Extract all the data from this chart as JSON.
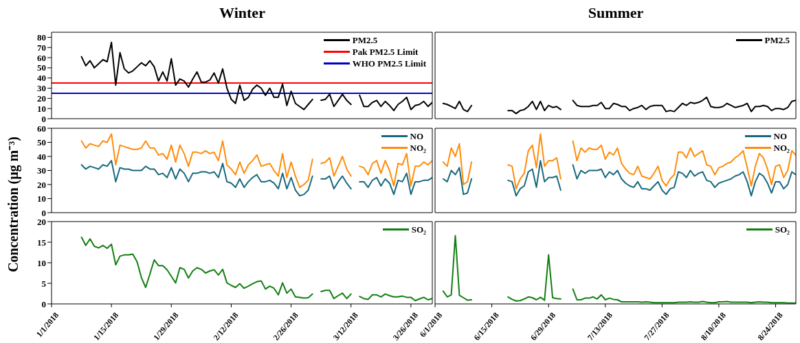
{
  "chart_data": [
    {
      "type": "line",
      "title": "Winter",
      "legend": "top right",
      "tick_labels": "y",
      "xlim": [
        "2018-01-01",
        "2018-03-31"
      ],
      "ylim": [
        0,
        85
      ],
      "yticks": [
        0,
        10,
        20,
        30,
        40,
        50,
        60,
        70,
        80
      ],
      "xticks": [
        {
          "value": "2018-01-01",
          "label": null
        },
        {
          "value": "2018-01-15",
          "label": null
        },
        {
          "value": "2018-01-29",
          "label": null
        },
        {
          "value": "2018-02-12",
          "label": null
        },
        {
          "value": "2018-02-26",
          "label": null
        },
        {
          "value": "2018-03-12",
          "label": null
        },
        {
          "value": "2018-03-26",
          "label": null
        }
      ],
      "x": [
        "2018-01-08",
        "2018-01-09",
        "2018-01-10",
        "2018-01-11",
        "2018-01-12",
        "2018-01-13",
        "2018-01-14",
        "2018-01-15",
        "2018-01-16",
        "2018-01-17",
        "2018-01-18",
        "2018-01-19",
        "2018-01-20",
        "2018-01-21",
        "2018-01-22",
        "2018-01-23",
        "2018-01-24",
        "2018-01-25",
        "2018-01-26",
        "2018-01-27",
        "2018-01-28",
        "2018-01-29",
        "2018-01-30",
        "2018-01-31",
        "2018-02-01",
        "2018-02-02",
        "2018-02-03",
        "2018-02-04",
        "2018-02-05",
        "2018-02-06",
        "2018-02-07",
        "2018-02-08",
        "2018-02-09",
        "2018-02-10",
        "2018-02-11",
        "2018-02-12",
        "2018-02-13",
        "2018-02-14",
        "2018-02-15",
        "2018-02-16",
        "2018-02-17",
        "2018-02-18",
        "2018-02-19",
        "2018-02-20",
        "2018-02-21",
        "2018-02-22",
        "2018-02-23",
        "2018-02-24",
        "2018-02-25",
        "2018-02-26",
        "2018-02-27",
        "2018-02-28",
        "2018-03-01",
        "2018-03-02",
        "2018-03-03",
        "2018-03-04",
        "2018-03-05",
        "2018-03-06",
        "2018-03-07",
        "2018-03-08",
        "2018-03-09",
        "2018-03-10",
        "2018-03-11",
        "2018-03-12",
        "2018-03-13",
        "2018-03-14",
        "2018-03-15",
        "2018-03-16",
        "2018-03-17",
        "2018-03-18",
        "2018-03-19",
        "2018-03-20",
        "2018-03-21",
        "2018-03-22",
        "2018-03-23",
        "2018-03-24",
        "2018-03-25",
        "2018-03-26",
        "2018-03-27",
        "2018-03-28",
        "2018-03-29",
        "2018-03-30",
        "2018-03-31"
      ],
      "series": [
        {
          "name": "PM2.5",
          "color": "#000000",
          "values": [
            61,
            52,
            57,
            50,
            54,
            58,
            56,
            75,
            33,
            65,
            49,
            45,
            47,
            51,
            55,
            52,
            57,
            51,
            37,
            46,
            37,
            59,
            33,
            39,
            37,
            31,
            39,
            46,
            36,
            36,
            38,
            45,
            35,
            49,
            30,
            19,
            15,
            33,
            18,
            21,
            29,
            33,
            30,
            23,
            30,
            21,
            21,
            34,
            13,
            27,
            15,
            12,
            9,
            14,
            19,
            null,
            18,
            19,
            24,
            12,
            18,
            24,
            18,
            14,
            null,
            23,
            12,
            12,
            16,
            18,
            12,
            17,
            13,
            8,
            14,
            17,
            21,
            9,
            13,
            14,
            17,
            12,
            16
          ]
        }
      ],
      "ref_lines": [
        {
          "axis": "y",
          "value": 35,
          "label": "Pak PM2.5 Limit",
          "color": "#ff0000"
        },
        {
          "axis": "y",
          "value": 25,
          "label": "WHO PM2.5 Limit",
          "color": "#0000cc"
        }
      ]
    },
    {
      "type": "line",
      "title": "Summer",
      "legend": "top right",
      "tick_labels": false,
      "xlim": [
        "2018-06-01",
        "2018-08-29"
      ],
      "ylim": [
        0,
        85
      ],
      "xticks": [
        {
          "value": "2018-06-01",
          "label": null
        },
        {
          "value": "2018-06-15",
          "label": null
        },
        {
          "value": "2018-06-29",
          "label": null
        },
        {
          "value": "2018-07-13",
          "label": null
        },
        {
          "value": "2018-07-27",
          "label": null
        },
        {
          "value": "2018-08-10",
          "label": null
        },
        {
          "value": "2018-08-24",
          "label": null
        }
      ],
      "x": [
        "2018-06-03",
        "2018-06-04",
        "2018-06-05",
        "2018-06-06",
        "2018-06-07",
        "2018-06-08",
        "2018-06-09",
        "2018-06-10",
        "2018-06-11",
        "2018-06-12",
        "2018-06-13",
        "2018-06-14",
        "2018-06-15",
        "2018-06-16",
        "2018-06-17",
        "2018-06-18",
        "2018-06-19",
        "2018-06-20",
        "2018-06-21",
        "2018-06-22",
        "2018-06-23",
        "2018-06-24",
        "2018-06-25",
        "2018-06-26",
        "2018-06-27",
        "2018-06-28",
        "2018-06-29",
        "2018-06-30",
        "2018-07-01",
        "2018-07-02",
        "2018-07-03",
        "2018-07-04",
        "2018-07-05",
        "2018-07-06",
        "2018-07-07",
        "2018-07-08",
        "2018-07-09",
        "2018-07-10",
        "2018-07-11",
        "2018-07-12",
        "2018-07-13",
        "2018-07-14",
        "2018-07-15",
        "2018-07-16",
        "2018-07-17",
        "2018-07-18",
        "2018-07-19",
        "2018-07-20",
        "2018-07-21",
        "2018-07-22",
        "2018-07-23",
        "2018-07-24",
        "2018-07-25",
        "2018-07-26",
        "2018-07-27",
        "2018-07-28",
        "2018-07-29",
        "2018-07-30",
        "2018-07-31",
        "2018-08-01",
        "2018-08-02",
        "2018-08-03",
        "2018-08-04",
        "2018-08-05",
        "2018-08-06",
        "2018-08-07",
        "2018-08-08",
        "2018-08-09",
        "2018-08-10",
        "2018-08-11",
        "2018-08-12",
        "2018-08-13",
        "2018-08-14",
        "2018-08-15",
        "2018-08-16",
        "2018-08-17",
        "2018-08-18",
        "2018-08-19",
        "2018-08-20",
        "2018-08-21",
        "2018-08-22",
        "2018-08-23",
        "2018-08-24",
        "2018-08-25",
        "2018-08-26",
        "2018-08-27",
        "2018-08-28",
        "2018-08-29"
      ],
      "series": [
        {
          "name": "PM2.5",
          "color": "#000000",
          "values": [
            15,
            14,
            12,
            10,
            17,
            9,
            7,
            13,
            null,
            null,
            null,
            null,
            null,
            null,
            null,
            null,
            8,
            8,
            5,
            8,
            9,
            12,
            17,
            9,
            17,
            8,
            13,
            11,
            12,
            9,
            null,
            null,
            18,
            13,
            12,
            12,
            12,
            13,
            13,
            16,
            10,
            10,
            15,
            14,
            12,
            12,
            8,
            10,
            11,
            13,
            9,
            12,
            13,
            13,
            13,
            7,
            8,
            7,
            11,
            15,
            13,
            16,
            15,
            16,
            18,
            21,
            12,
            11,
            11,
            12,
            15,
            13,
            11,
            12,
            13,
            15,
            7,
            12,
            12,
            13,
            12,
            8,
            10,
            10,
            9,
            11,
            17,
            18
          ]
        }
      ]
    },
    {
      "type": "line",
      "ylabel": "Concentration (μg m⁻³)",
      "legend": "top right",
      "tick_labels": "y",
      "xlim": [
        "2018-01-01",
        "2018-03-31"
      ],
      "ylim": [
        0,
        60
      ],
      "yticks": [
        0,
        10,
        20,
        30,
        40,
        50,
        60
      ],
      "xticks": [
        {
          "value": "2018-01-01",
          "label": null
        },
        {
          "value": "2018-01-15",
          "label": null
        },
        {
          "value": "2018-01-29",
          "label": null
        },
        {
          "value": "2018-02-12",
          "label": null
        },
        {
          "value": "2018-02-26",
          "label": null
        },
        {
          "value": "2018-03-12",
          "label": null
        },
        {
          "value": "2018-03-26",
          "label": null
        }
      ],
      "x": [
        "2018-01-08",
        "2018-01-09",
        "2018-01-10",
        "2018-01-11",
        "2018-01-12",
        "2018-01-13",
        "2018-01-14",
        "2018-01-15",
        "2018-01-16",
        "2018-01-17",
        "2018-01-18",
        "2018-01-19",
        "2018-01-20",
        "2018-01-21",
        "2018-01-22",
        "2018-01-23",
        "2018-01-24",
        "2018-01-25",
        "2018-01-26",
        "2018-01-27",
        "2018-01-28",
        "2018-01-29",
        "2018-01-30",
        "2018-01-31",
        "2018-02-01",
        "2018-02-02",
        "2018-02-03",
        "2018-02-04",
        "2018-02-05",
        "2018-02-06",
        "2018-02-07",
        "2018-02-08",
        "2018-02-09",
        "2018-02-10",
        "2018-02-11",
        "2018-02-12",
        "2018-02-13",
        "2018-02-14",
        "2018-02-15",
        "2018-02-16",
        "2018-02-17",
        "2018-02-18",
        "2018-02-19",
        "2018-02-20",
        "2018-02-21",
        "2018-02-22",
        "2018-02-23",
        "2018-02-24",
        "2018-02-25",
        "2018-02-26",
        "2018-02-27",
        "2018-02-28",
        "2018-03-01",
        "2018-03-02",
        "2018-03-03",
        "2018-03-04",
        "2018-03-05",
        "2018-03-06",
        "2018-03-07",
        "2018-03-08",
        "2018-03-09",
        "2018-03-10",
        "2018-03-11",
        "2018-03-12",
        "2018-03-13",
        "2018-03-14",
        "2018-03-15",
        "2018-03-16",
        "2018-03-17",
        "2018-03-18",
        "2018-03-19",
        "2018-03-20",
        "2018-03-21",
        "2018-03-22",
        "2018-03-23",
        "2018-03-24",
        "2018-03-25",
        "2018-03-26",
        "2018-03-27",
        "2018-03-28",
        "2018-03-29",
        "2018-03-30",
        "2018-03-31"
      ],
      "series": [
        {
          "name": "NO",
          "color": "#16687e",
          "values": [
            34,
            31,
            33,
            32,
            31,
            34,
            33,
            37,
            22,
            32,
            31,
            31,
            30,
            30,
            30,
            33,
            31,
            31,
            27,
            28,
            25,
            32,
            24,
            31,
            28,
            22,
            28,
            28,
            29,
            29,
            28,
            29,
            25,
            35,
            22,
            21,
            18,
            24,
            18,
            22,
            25,
            27,
            22,
            22,
            23,
            21,
            17,
            28,
            17,
            25,
            16,
            12,
            13,
            16,
            26,
            null,
            24,
            24,
            26,
            17,
            22,
            26,
            21,
            17,
            null,
            22,
            22,
            18,
            23,
            25,
            19,
            24,
            21,
            13,
            23,
            22,
            28,
            13,
            22,
            22,
            23,
            23,
            25
          ]
        },
        {
          "name": "NO₂",
          "color": "#ff8c0a",
          "values": [
            51,
            46,
            49,
            48,
            47,
            51,
            50,
            56,
            34,
            48,
            47,
            46,
            45,
            45,
            46,
            51,
            46,
            46,
            41,
            42,
            38,
            48,
            36,
            48,
            42,
            33,
            43,
            43,
            42,
            44,
            42,
            43,
            37,
            51,
            34,
            31,
            27,
            36,
            28,
            34,
            37,
            41,
            33,
            34,
            35,
            30,
            26,
            42,
            25,
            36,
            26,
            18,
            20,
            23,
            38,
            null,
            35,
            36,
            39,
            26,
            33,
            40,
            31,
            26,
            null,
            33,
            32,
            27,
            35,
            37,
            28,
            37,
            30,
            19,
            35,
            34,
            42,
            19,
            33,
            33,
            36,
            34,
            37
          ]
        }
      ]
    },
    {
      "type": "line",
      "legend": "top right",
      "tick_labels": false,
      "xlim": [
        "2018-06-01",
        "2018-08-29"
      ],
      "ylim": [
        0,
        60
      ],
      "xticks": [
        {
          "value": "2018-06-01",
          "label": null
        },
        {
          "value": "2018-06-15",
          "label": null
        },
        {
          "value": "2018-06-29",
          "label": null
        },
        {
          "value": "2018-07-13",
          "label": null
        },
        {
          "value": "2018-07-27",
          "label": null
        },
        {
          "value": "2018-08-10",
          "label": null
        },
        {
          "value": "2018-08-24",
          "label": null
        }
      ],
      "x": [
        "2018-06-03",
        "2018-06-04",
        "2018-06-05",
        "2018-06-06",
        "2018-06-07",
        "2018-06-08",
        "2018-06-09",
        "2018-06-10",
        "2018-06-11",
        "2018-06-12",
        "2018-06-13",
        "2018-06-14",
        "2018-06-15",
        "2018-06-16",
        "2018-06-17",
        "2018-06-18",
        "2018-06-19",
        "2018-06-20",
        "2018-06-21",
        "2018-06-22",
        "2018-06-23",
        "2018-06-24",
        "2018-06-25",
        "2018-06-26",
        "2018-06-27",
        "2018-06-28",
        "2018-06-29",
        "2018-06-30",
        "2018-07-01",
        "2018-07-02",
        "2018-07-03",
        "2018-07-04",
        "2018-07-05",
        "2018-07-06",
        "2018-07-07",
        "2018-07-08",
        "2018-07-09",
        "2018-07-10",
        "2018-07-11",
        "2018-07-12",
        "2018-07-13",
        "2018-07-14",
        "2018-07-15",
        "2018-07-16",
        "2018-07-17",
        "2018-07-18",
        "2018-07-19",
        "2018-07-20",
        "2018-07-21",
        "2018-07-22",
        "2018-07-23",
        "2018-07-24",
        "2018-07-25",
        "2018-07-26",
        "2018-07-27",
        "2018-07-28",
        "2018-07-29",
        "2018-07-30",
        "2018-07-31",
        "2018-08-01",
        "2018-08-02",
        "2018-08-03",
        "2018-08-04",
        "2018-08-05",
        "2018-08-06",
        "2018-08-07",
        "2018-08-08",
        "2018-08-09",
        "2018-08-10",
        "2018-08-11",
        "2018-08-12",
        "2018-08-13",
        "2018-08-14",
        "2018-08-15",
        "2018-08-16",
        "2018-08-17",
        "2018-08-18",
        "2018-08-19",
        "2018-08-20",
        "2018-08-21",
        "2018-08-22",
        "2018-08-23",
        "2018-08-24",
        "2018-08-25",
        "2018-08-26",
        "2018-08-27",
        "2018-08-28",
        "2018-08-29"
      ],
      "series": [
        {
          "name": "NO",
          "color": "#16687e",
          "values": [
            24,
            22,
            30,
            27,
            32,
            13,
            14,
            24,
            null,
            null,
            null,
            null,
            null,
            null,
            null,
            null,
            23,
            22,
            12,
            17,
            19,
            29,
            31,
            18,
            37,
            22,
            25,
            25,
            26,
            16,
            null,
            null,
            34,
            24,
            30,
            28,
            30,
            30,
            30,
            31,
            25,
            29,
            27,
            30,
            24,
            21,
            19,
            18,
            22,
            17,
            17,
            16,
            19,
            22,
            16,
            13,
            17,
            18,
            29,
            28,
            25,
            30,
            26,
            28,
            29,
            23,
            22,
            18,
            21,
            22,
            23,
            24,
            26,
            27,
            29,
            22,
            12,
            22,
            28,
            26,
            21,
            14,
            22,
            22,
            17,
            20,
            29,
            27
          ]
        },
        {
          "name": "NO₂",
          "color": "#ff8c0a",
          "values": [
            36,
            33,
            46,
            40,
            49,
            20,
            22,
            36,
            null,
            null,
            null,
            null,
            null,
            null,
            null,
            null,
            34,
            33,
            17,
            24,
            28,
            44,
            48,
            32,
            56,
            33,
            37,
            37,
            39,
            24,
            null,
            null,
            51,
            37,
            46,
            43,
            46,
            45,
            45,
            48,
            38,
            43,
            41,
            46,
            35,
            31,
            28,
            27,
            33,
            26,
            25,
            24,
            28,
            33,
            23,
            19,
            24,
            27,
            43,
            43,
            39,
            46,
            40,
            42,
            44,
            34,
            33,
            27,
            32,
            33,
            35,
            36,
            39,
            41,
            44,
            32,
            19,
            33,
            42,
            39,
            31,
            20,
            33,
            34,
            25,
            30,
            44,
            41
          ]
        }
      ]
    },
    {
      "type": "line",
      "legend": "top right",
      "xlim": [
        "2018-01-01",
        "2018-03-31"
      ],
      "ylim": [
        0,
        20
      ],
      "yticks": [
        0,
        5,
        10,
        15,
        20
      ],
      "xticks": [
        {
          "value": "2018-01-01",
          "label": "1/1/2018"
        },
        {
          "value": "2018-01-15",
          "label": "1/15/2018"
        },
        {
          "value": "2018-01-29",
          "label": "1/29/2018"
        },
        {
          "value": "2018-02-12",
          "label": "2/12/2018"
        },
        {
          "value": "2018-02-26",
          "label": "2/26/2018"
        },
        {
          "value": "2018-03-12",
          "label": "3/12/2018"
        },
        {
          "value": "2018-03-26",
          "label": "3/26/2018"
        }
      ],
      "x": [
        "2018-01-08",
        "2018-01-09",
        "2018-01-10",
        "2018-01-11",
        "2018-01-12",
        "2018-01-13",
        "2018-01-14",
        "2018-01-15",
        "2018-01-16",
        "2018-01-17",
        "2018-01-18",
        "2018-01-19",
        "2018-01-20",
        "2018-01-21",
        "2018-01-22",
        "2018-01-23",
        "2018-01-24",
        "2018-01-25",
        "2018-01-26",
        "2018-01-27",
        "2018-01-28",
        "2018-01-29",
        "2018-01-30",
        "2018-01-31",
        "2018-02-01",
        "2018-02-02",
        "2018-02-03",
        "2018-02-04",
        "2018-02-05",
        "2018-02-06",
        "2018-02-07",
        "2018-02-08",
        "2018-02-09",
        "2018-02-10",
        "2018-02-11",
        "2018-02-12",
        "2018-02-13",
        "2018-02-14",
        "2018-02-15",
        "2018-02-16",
        "2018-02-17",
        "2018-02-18",
        "2018-02-19",
        "2018-02-20",
        "2018-02-21",
        "2018-02-22",
        "2018-02-23",
        "2018-02-24",
        "2018-02-25",
        "2018-02-26",
        "2018-02-27",
        "2018-02-28",
        "2018-03-01",
        "2018-03-02",
        "2018-03-03",
        "2018-03-04",
        "2018-03-05",
        "2018-03-06",
        "2018-03-07",
        "2018-03-08",
        "2018-03-09",
        "2018-03-10",
        "2018-03-11",
        "2018-03-12",
        "2018-03-13",
        "2018-03-14",
        "2018-03-15",
        "2018-03-16",
        "2018-03-17",
        "2018-03-18",
        "2018-03-19",
        "2018-03-20",
        "2018-03-21",
        "2018-03-22",
        "2018-03-23",
        "2018-03-24",
        "2018-03-25",
        "2018-03-26",
        "2018-03-27",
        "2018-03-28",
        "2018-03-29",
        "2018-03-30",
        "2018-03-31"
      ],
      "series": [
        {
          "name": "SO₂",
          "color": "#117e11",
          "values": [
            16.2,
            14.2,
            15.8,
            14.0,
            13.6,
            14.2,
            13.5,
            14.5,
            9.5,
            11.6,
            11.9,
            11.9,
            12.1,
            10.2,
            6.4,
            4.0,
            7.3,
            10.7,
            9.3,
            9.3,
            8.3,
            6.7,
            5.1,
            8.8,
            8.4,
            6.3,
            8.0,
            8.8,
            8.4,
            7.5,
            8.0,
            8.3,
            7.0,
            8.4,
            5.1,
            4.5,
            4.0,
            4.9,
            3.8,
            4.3,
            4.9,
            5.4,
            5.6,
            3.6,
            4.3,
            3.8,
            2.2,
            5.1,
            2.6,
            3.6,
            1.7,
            1.6,
            1.4,
            1.5,
            2.4,
            null,
            3.0,
            3.3,
            3.3,
            1.3,
            2.0,
            2.6,
            1.3,
            2.4,
            null,
            1.8,
            1.3,
            1.1,
            2.2,
            2.2,
            1.7,
            2.4,
            2.0,
            1.7,
            1.7,
            1.9,
            1.6,
            1.6,
            0.8,
            1.2,
            1.6,
            1.0,
            1.3
          ]
        }
      ]
    },
    {
      "type": "line",
      "legend": "top right",
      "tick_labels": "x",
      "xlim": [
        "2018-06-01",
        "2018-08-29"
      ],
      "ylim": [
        0,
        20
      ],
      "xticks": [
        {
          "value": "2018-06-01",
          "label": "6/1/2018"
        },
        {
          "value": "2018-06-15",
          "label": "6/15/2018"
        },
        {
          "value": "2018-06-29",
          "label": "6/29/2018"
        },
        {
          "value": "2018-07-13",
          "label": "7/13/2018"
        },
        {
          "value": "2018-07-27",
          "label": "7/27/2018"
        },
        {
          "value": "2018-08-10",
          "label": "8/10/2018"
        },
        {
          "value": "2018-08-24",
          "label": "8/24/2018"
        }
      ],
      "x": [
        "2018-06-03",
        "2018-06-04",
        "2018-06-05",
        "2018-06-06",
        "2018-06-07",
        "2018-06-08",
        "2018-06-09",
        "2018-06-10",
        "2018-06-11",
        "2018-06-12",
        "2018-06-13",
        "2018-06-14",
        "2018-06-15",
        "2018-06-16",
        "2018-06-17",
        "2018-06-18",
        "2018-06-19",
        "2018-06-20",
        "2018-06-21",
        "2018-06-22",
        "2018-06-23",
        "2018-06-24",
        "2018-06-25",
        "2018-06-26",
        "2018-06-27",
        "2018-06-28",
        "2018-06-29",
        "2018-06-30",
        "2018-07-01",
        "2018-07-02",
        "2018-07-03",
        "2018-07-04",
        "2018-07-05",
        "2018-07-06",
        "2018-07-07",
        "2018-07-08",
        "2018-07-09",
        "2018-07-10",
        "2018-07-11",
        "2018-07-12",
        "2018-07-13",
        "2018-07-14",
        "2018-07-15",
        "2018-07-16",
        "2018-07-17",
        "2018-07-18",
        "2018-07-19",
        "2018-07-20",
        "2018-07-21",
        "2018-07-22",
        "2018-07-23",
        "2018-07-24",
        "2018-07-25",
        "2018-07-26",
        "2018-07-27",
        "2018-07-28",
        "2018-07-29",
        "2018-07-30",
        "2018-07-31",
        "2018-08-01",
        "2018-08-02",
        "2018-08-03",
        "2018-08-04",
        "2018-08-05",
        "2018-08-06",
        "2018-08-07",
        "2018-08-08",
        "2018-08-09",
        "2018-08-10",
        "2018-08-11",
        "2018-08-12",
        "2018-08-13",
        "2018-08-14",
        "2018-08-15",
        "2018-08-16",
        "2018-08-17",
        "2018-08-18",
        "2018-08-19",
        "2018-08-20",
        "2018-08-21",
        "2018-08-22",
        "2018-08-23",
        "2018-08-24",
        "2018-08-25",
        "2018-08-26",
        "2018-08-27",
        "2018-08-28",
        "2018-08-29"
      ],
      "series": [
        {
          "name": "SO₂",
          "color": "#117e11",
          "values": [
            3.1,
            1.7,
            2.2,
            16.6,
            2.1,
            1.5,
            0.9,
            1.0,
            null,
            null,
            null,
            null,
            null,
            null,
            null,
            null,
            1.7,
            1.1,
            0.7,
            0.8,
            1.2,
            1.7,
            1.5,
            1.0,
            1.6,
            0.9,
            11.9,
            1.5,
            1.3,
            1.2,
            null,
            null,
            3.6,
            1.0,
            1.0,
            1.4,
            1.4,
            1.7,
            1.2,
            2.2,
            1.0,
            1.4,
            1.1,
            1.0,
            0.5,
            0.5,
            0.5,
            0.5,
            0.5,
            0.4,
            0.5,
            0.4,
            0.3,
            0.3,
            0.3,
            0.3,
            0.3,
            0.3,
            0.4,
            0.4,
            0.4,
            0.5,
            0.4,
            0.4,
            0.6,
            0.4,
            0.3,
            0.3,
            0.5,
            0.5,
            0.6,
            0.4,
            0.4,
            0.4,
            0.4,
            0.4,
            0.3,
            0.4,
            0.5,
            0.4,
            0.4,
            0.3,
            0.3,
            0.3,
            0.3,
            0.2,
            0.2,
            0.2
          ]
        }
      ]
    }
  ]
}
